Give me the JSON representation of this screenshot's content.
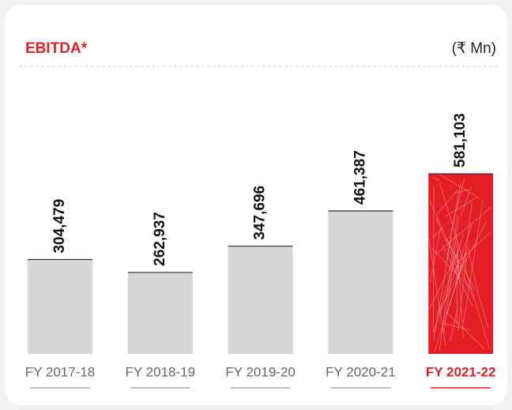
{
  "chart_data": {
    "type": "bar",
    "title": "EBITDA*",
    "unit": "(₹ Mn)",
    "categories": [
      "FY 2017-18",
      "FY 2018-19",
      "FY 2019-20",
      "FY 2020-21",
      "FY 2021-22"
    ],
    "values": [
      304479,
      262937,
      347696,
      461387,
      581103
    ],
    "value_labels": [
      "304,479",
      "262,937",
      "347,696",
      "461,387",
      "581,103"
    ],
    "colors": [
      "#d8d5d6",
      "#d8d5d6",
      "#d8d5d6",
      "#d8d5d6",
      "#e41f26"
    ],
    "highlight_index": 4
  }
}
